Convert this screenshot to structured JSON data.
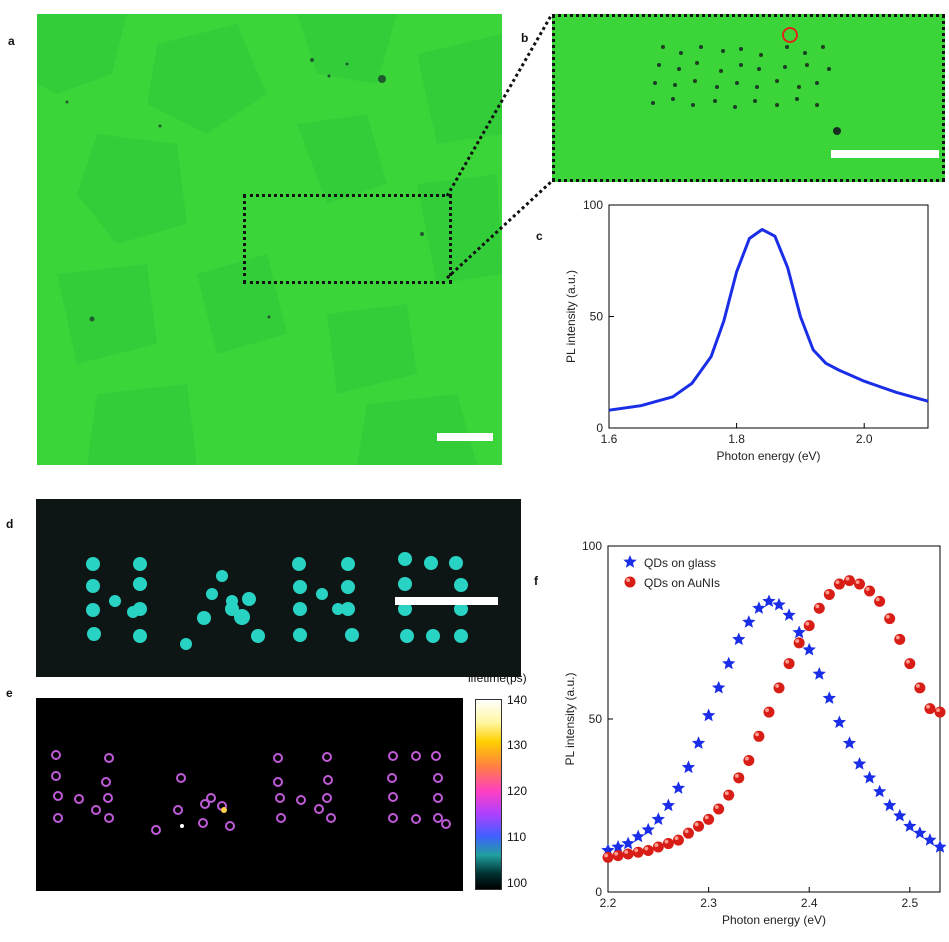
{
  "panels": {
    "a": {
      "label": "a"
    },
    "b": {
      "label": "b"
    },
    "c": {
      "label": "c"
    },
    "d": {
      "label": "d"
    },
    "e": {
      "label": "e",
      "colorbar_title": "lifetime(ps)",
      "colorbar_ticks": [
        "140",
        "130",
        "120",
        "110",
        "100"
      ]
    },
    "f": {
      "label": "f"
    }
  },
  "colors": {
    "fluorescence_green": "#3ad63a",
    "marker_red": "#e0261c",
    "curve_blue": "#1a2ee8",
    "dot_cyan": "#29d3c3",
    "dark_background": "#0d1614"
  },
  "chart_data": [
    {
      "id": "c",
      "type": "line",
      "xlabel": "Photon energy (eV)",
      "ylabel": "PL intensity (a.u.)",
      "xlim": [
        1.6,
        2.1
      ],
      "ylim": [
        0,
        100
      ],
      "xticks": [
        "1.6",
        "1.8",
        "2.0"
      ],
      "yticks": [
        "0",
        "50",
        "100"
      ],
      "series": [
        {
          "x": [
            1.6,
            1.65,
            1.7,
            1.73,
            1.76,
            1.78,
            1.8,
            1.82,
            1.84,
            1.86,
            1.88,
            1.9,
            1.92,
            1.94,
            1.96,
            2.0,
            2.05,
            2.1
          ],
          "values": [
            8,
            10,
            14,
            20,
            32,
            48,
            70,
            85,
            89,
            86,
            72,
            50,
            35,
            29,
            26,
            21,
            16,
            12
          ]
        }
      ]
    },
    {
      "id": "f",
      "type": "scatter",
      "xlabel": "Photon energy (eV)",
      "ylabel": "PL intensity (a.u.)",
      "xlim": [
        2.2,
        2.53
      ],
      "ylim": [
        0,
        100
      ],
      "xticks": [
        "2.2",
        "2.3",
        "2.4",
        "2.5"
      ],
      "yticks": [
        "0",
        "50",
        "100"
      ],
      "legend_position": "top-left",
      "series": [
        {
          "name": "QDs on glass",
          "marker": "star",
          "x": [
            2.2,
            2.21,
            2.22,
            2.23,
            2.24,
            2.25,
            2.26,
            2.27,
            2.28,
            2.29,
            2.3,
            2.31,
            2.32,
            2.33,
            2.34,
            2.35,
            2.36,
            2.37,
            2.38,
            2.39,
            2.4,
            2.41,
            2.42,
            2.43,
            2.44,
            2.45,
            2.46,
            2.47,
            2.48,
            2.49,
            2.5,
            2.51,
            2.52,
            2.53
          ],
          "values": [
            12,
            13,
            14,
            16,
            18,
            21,
            25,
            30,
            36,
            43,
            51,
            59,
            66,
            73,
            78,
            82,
            84,
            83,
            80,
            75,
            70,
            63,
            56,
            49,
            43,
            37,
            33,
            29,
            25,
            22,
            19,
            17,
            15,
            13
          ]
        },
        {
          "name": "QDs on  AuNIs",
          "marker": "sphere",
          "x": [
            2.2,
            2.21,
            2.22,
            2.23,
            2.24,
            2.25,
            2.26,
            2.27,
            2.28,
            2.29,
            2.3,
            2.31,
            2.32,
            2.33,
            2.34,
            2.35,
            2.36,
            2.37,
            2.38,
            2.39,
            2.4,
            2.41,
            2.42,
            2.43,
            2.44,
            2.45,
            2.46,
            2.47,
            2.48,
            2.49,
            2.5,
            2.51,
            2.52,
            2.53
          ],
          "values": [
            10,
            10.5,
            11,
            11.5,
            12,
            13,
            14,
            15,
            17,
            19,
            21,
            24,
            28,
            33,
            38,
            45,
            52,
            59,
            66,
            72,
            77,
            82,
            86,
            89,
            90,
            89,
            87,
            84,
            79,
            73,
            66,
            59,
            53,
            52
          ]
        }
      ]
    }
  ]
}
